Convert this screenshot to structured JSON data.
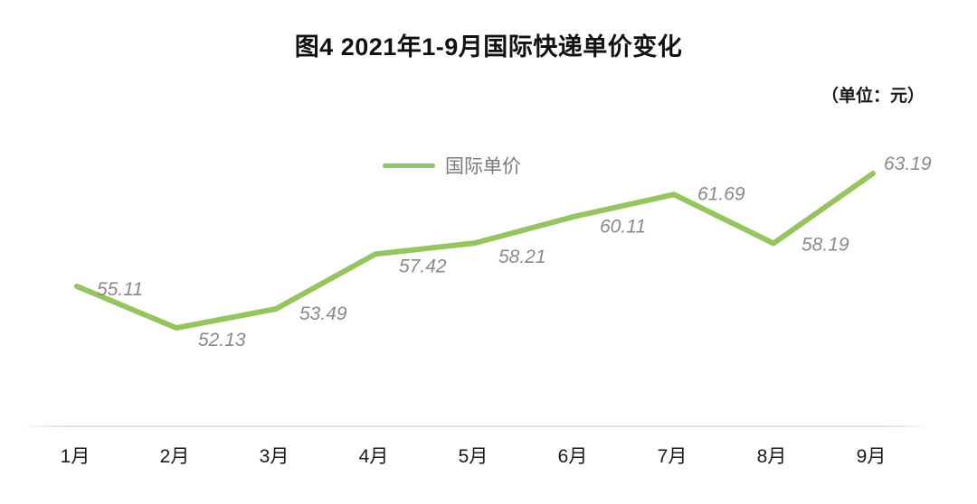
{
  "title": "图4 2021年1-9月国际快递单价变化",
  "unit_label": "（单位：元）",
  "legend": {
    "label": "国际单价"
  },
  "colors": {
    "line": "#96C45F",
    "value_label": "#8A8A8A",
    "legend_text": "#7B7B7B",
    "title_text": "#111111",
    "x_label": "#1A1A1A",
    "axis_line": "#DEDEDE",
    "background": "#FFFFFF"
  },
  "chart_data": {
    "type": "line",
    "title": "图4 2021年1-9月国际快递单价变化",
    "unit": "元",
    "categories": [
      "1月",
      "2月",
      "3月",
      "4月",
      "5月",
      "6月",
      "7月",
      "8月",
      "9月"
    ],
    "series": [
      {
        "name": "国际单价",
        "values": [
          55.11,
          52.13,
          53.49,
          57.42,
          58.21,
          60.11,
          61.69,
          58.19,
          63.19
        ]
      }
    ],
    "xlabel": "",
    "ylabel": "",
    "ylim": [
      50,
      65
    ],
    "grid": false,
    "y_axis_visible": false,
    "data_labels": true,
    "legend_position": "top-center"
  }
}
